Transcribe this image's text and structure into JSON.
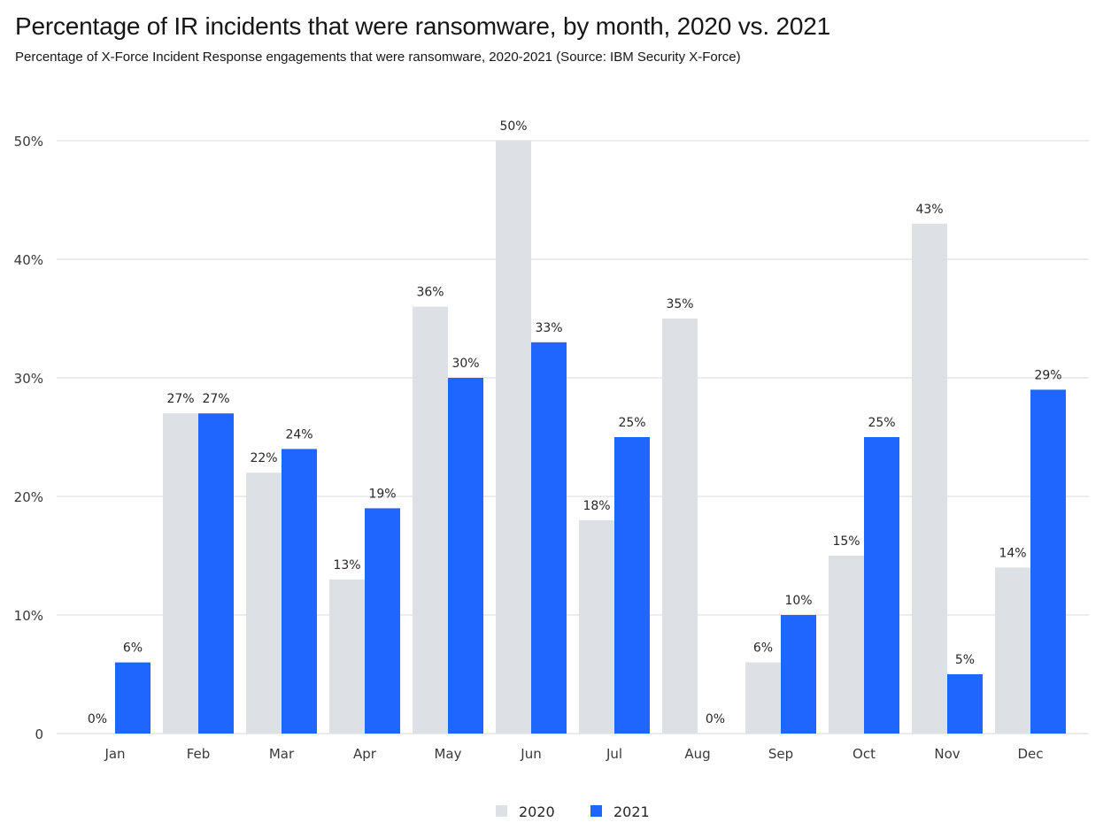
{
  "chart_data": {
    "type": "bar",
    "title": "Percentage of IR incidents that were ransomware, by month, 2020 vs. 2021",
    "subtitle": "Percentage of X-Force Incident Response engagements that were ransomware, 2020-2021 (Source: IBM Security X-Force)",
    "xlabel": "",
    "ylabel": "",
    "categories": [
      "Jan",
      "Feb",
      "Mar",
      "Apr",
      "May",
      "Jun",
      "Jul",
      "Aug",
      "Sep",
      "Oct",
      "Nov",
      "Dec"
    ],
    "series": [
      {
        "name": "2020",
        "color": "#dde0e4",
        "values": [
          0,
          27,
          22,
          13,
          36,
          50,
          18,
          35,
          6,
          15,
          43,
          14
        ],
        "labels": [
          "0%",
          "27%",
          "22%",
          "13%",
          "36%",
          "50%",
          "18%",
          "35%",
          "6%",
          "15%",
          "43%",
          "14%"
        ]
      },
      {
        "name": "2021",
        "color": "#1f66ff",
        "values": [
          6,
          27,
          24,
          19,
          30,
          33,
          25,
          0,
          10,
          25,
          5,
          29
        ],
        "labels": [
          "6%",
          "27%",
          "24%",
          "19%",
          "30%",
          "33%",
          "25%",
          "0%",
          "10%",
          "25%",
          "5%",
          "29%"
        ]
      }
    ],
    "ylim": [
      0,
      50
    ],
    "yticks": [
      0,
      10,
      20,
      30,
      40,
      50
    ],
    "ytick_labels": [
      "0",
      "10%",
      "20%",
      "30%",
      "40%",
      "50%"
    ],
    "grid": true,
    "legend_position": "bottom-center"
  }
}
